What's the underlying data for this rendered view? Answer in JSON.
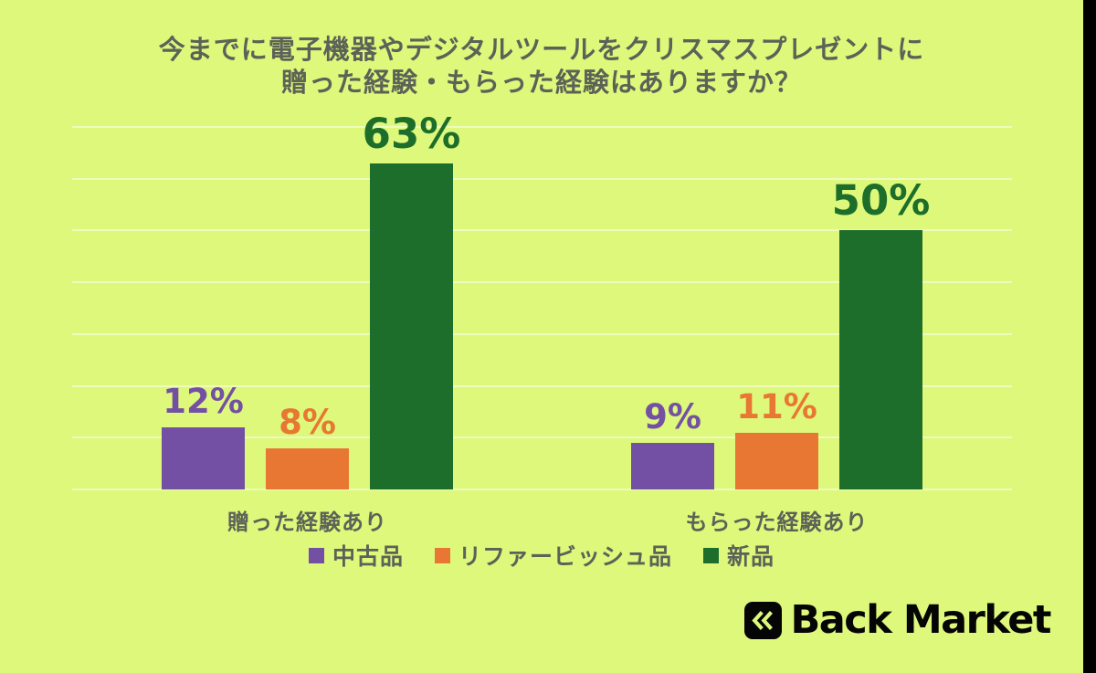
{
  "title": {
    "line1": "今までに電子機器やデジタルツールをクリスマスプレゼントに",
    "line2": "贈った経験・もらった経験はありますか？"
  },
  "chart_data": {
    "type": "bar",
    "title": "今までに電子機器やデジタルツールをクリスマスプレゼントに贈った経験・もらった経験はありますか？",
    "categories": [
      "贈った経験あり",
      "もらった経験あり"
    ],
    "series": [
      {
        "name": "中古品",
        "color": "#7350a4",
        "values": [
          12,
          9
        ],
        "emphasis": false
      },
      {
        "name": "リファービッシュ品",
        "color": "#e87733",
        "values": [
          8,
          11
        ],
        "emphasis": false
      },
      {
        "name": "新品",
        "color": "#1d6e2a",
        "values": [
          63,
          50
        ],
        "emphasis": true
      }
    ],
    "value_suffix": "%",
    "ylim": [
      0,
      70
    ],
    "grid_step": 10,
    "grid": true,
    "y_axis_labels_visible": false,
    "legend_position": "bottom",
    "xlabel": "",
    "ylabel": ""
  },
  "branding": {
    "logo_text": "Back Market",
    "logo_icon": "double-chevron-left-icon"
  },
  "colors": {
    "background": "#ddf87b",
    "title_text": "#5c6257",
    "gridline": "rgba(255,255,255,0.5)",
    "purple": "#7350a4",
    "orange": "#e87733",
    "green": "#1d6e2a",
    "logo_black": "#050505"
  }
}
